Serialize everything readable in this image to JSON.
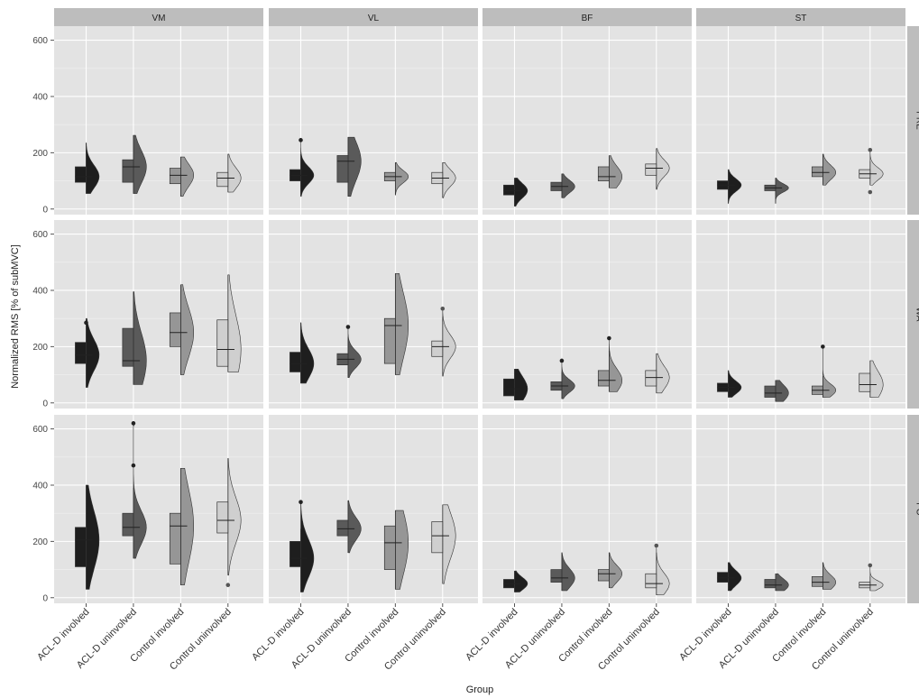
{
  "chart_data": {
    "type": "half-violin-box",
    "xlabel": "Group",
    "ylabel": "Normalized RMS [% of subMVC]",
    "ylim": [
      -20,
      650
    ],
    "yticks": [
      0,
      200,
      400,
      600
    ],
    "grid": true,
    "columns": [
      "VM",
      "VL",
      "BF",
      "ST"
    ],
    "rows": [
      "PRE",
      "WA",
      "PO"
    ],
    "categories": [
      "ACL-D involved",
      "ACL-D uninvolved",
      "Control involved",
      "Control uninvolved"
    ],
    "group_colors": [
      "#1e1e1e",
      "#5a5a5a",
      "#969696",
      "#cfcfcf"
    ],
    "panels": [
      {
        "row": "PRE",
        "col": "VM",
        "groups": [
          {
            "min": 55,
            "q1": 95,
            "median": 115,
            "q3": 150,
            "max": 235,
            "outliers": []
          },
          {
            "min": 55,
            "q1": 95,
            "median": 150,
            "q3": 175,
            "max": 262,
            "outliers": []
          },
          {
            "min": 45,
            "q1": 90,
            "median": 120,
            "q3": 145,
            "max": 185,
            "outliers": []
          },
          {
            "min": 60,
            "q1": 80,
            "median": 110,
            "q3": 130,
            "max": 195,
            "outliers": []
          }
        ]
      },
      {
        "row": "PRE",
        "col": "VL",
        "groups": [
          {
            "min": 45,
            "q1": 100,
            "median": 120,
            "q3": 140,
            "max": 195,
            "outliers": [
              245
            ]
          },
          {
            "min": 45,
            "q1": 95,
            "median": 170,
            "q3": 190,
            "max": 255,
            "outliers": []
          },
          {
            "min": 50,
            "q1": 100,
            "median": 115,
            "q3": 130,
            "max": 165,
            "outliers": []
          },
          {
            "min": 40,
            "q1": 90,
            "median": 110,
            "q3": 130,
            "max": 165,
            "outliers": []
          }
        ]
      },
      {
        "row": "PRE",
        "col": "BF",
        "groups": [
          {
            "min": 10,
            "q1": 50,
            "median": 65,
            "q3": 85,
            "max": 110,
            "outliers": []
          },
          {
            "min": 40,
            "q1": 65,
            "median": 80,
            "q3": 95,
            "max": 125,
            "outliers": []
          },
          {
            "min": 75,
            "q1": 100,
            "median": 115,
            "q3": 150,
            "max": 190,
            "outliers": []
          },
          {
            "min": 70,
            "q1": 120,
            "median": 145,
            "q3": 160,
            "max": 215,
            "outliers": []
          }
        ]
      },
      {
        "row": "PRE",
        "col": "ST",
        "groups": [
          {
            "min": 20,
            "q1": 70,
            "median": 85,
            "q3": 100,
            "max": 140,
            "outliers": []
          },
          {
            "min": 20,
            "q1": 65,
            "median": 75,
            "q3": 85,
            "max": 110,
            "outliers": []
          },
          {
            "min": 85,
            "q1": 115,
            "median": 130,
            "q3": 150,
            "max": 195,
            "outliers": []
          },
          {
            "min": 85,
            "q1": 110,
            "median": 125,
            "q3": 140,
            "max": 170,
            "outliers": [
              60,
              210
            ]
          }
        ]
      },
      {
        "row": "WA",
        "col": "VM",
        "groups": [
          {
            "min": 55,
            "q1": 140,
            "median": 170,
            "q3": 215,
            "max": 300,
            "outliers": [
              285
            ]
          },
          {
            "min": 65,
            "q1": 130,
            "median": 150,
            "q3": 265,
            "max": 395,
            "outliers": []
          },
          {
            "min": 100,
            "q1": 200,
            "median": 250,
            "q3": 320,
            "max": 420,
            "outliers": []
          },
          {
            "min": 110,
            "q1": 130,
            "median": 190,
            "q3": 295,
            "max": 455,
            "outliers": []
          }
        ]
      },
      {
        "row": "WA",
        "col": "VL",
        "groups": [
          {
            "min": 70,
            "q1": 110,
            "median": 140,
            "q3": 180,
            "max": 285,
            "outliers": []
          },
          {
            "min": 90,
            "q1": 135,
            "median": 155,
            "q3": 175,
            "max": 235,
            "outliers": [
              270
            ]
          },
          {
            "min": 100,
            "q1": 140,
            "median": 275,
            "q3": 300,
            "max": 460,
            "outliers": []
          },
          {
            "min": 95,
            "q1": 165,
            "median": 200,
            "q3": 220,
            "max": 305,
            "outliers": [
              335
            ]
          }
        ]
      },
      {
        "row": "WA",
        "col": "BF",
        "groups": [
          {
            "min": 10,
            "q1": 25,
            "median": 50,
            "q3": 85,
            "max": 120,
            "outliers": []
          },
          {
            "min": 15,
            "q1": 45,
            "median": 60,
            "q3": 75,
            "max": 110,
            "outliers": [
              150
            ]
          },
          {
            "min": 40,
            "q1": 60,
            "median": 80,
            "q3": 115,
            "max": 185,
            "outliers": [
              230
            ]
          },
          {
            "min": 35,
            "q1": 60,
            "median": 90,
            "q3": 115,
            "max": 175,
            "outliers": []
          }
        ]
      },
      {
        "row": "WA",
        "col": "ST",
        "groups": [
          {
            "min": 20,
            "q1": 40,
            "median": 55,
            "q3": 70,
            "max": 115,
            "outliers": []
          },
          {
            "min": 5,
            "q1": 20,
            "median": 35,
            "q3": 60,
            "max": 80,
            "outliers": []
          },
          {
            "min": 20,
            "q1": 30,
            "median": 45,
            "q3": 60,
            "max": 95,
            "outliers": [
              200
            ]
          },
          {
            "min": 20,
            "q1": 40,
            "median": 65,
            "q3": 105,
            "max": 150,
            "outliers": []
          }
        ]
      },
      {
        "row": "PO",
        "col": "VM",
        "groups": [
          {
            "min": 30,
            "q1": 110,
            "median": 205,
            "q3": 250,
            "max": 400,
            "outliers": []
          },
          {
            "min": 140,
            "q1": 220,
            "median": 250,
            "q3": 300,
            "max": 390,
            "outliers": [
              470,
              620
            ]
          },
          {
            "min": 45,
            "q1": 120,
            "median": 255,
            "q3": 300,
            "max": 460,
            "outliers": []
          },
          {
            "min": 80,
            "q1": 230,
            "median": 275,
            "q3": 340,
            "max": 495,
            "outliers": [
              45
            ]
          }
        ]
      },
      {
        "row": "PO",
        "col": "VL",
        "groups": [
          {
            "min": 20,
            "q1": 110,
            "median": 140,
            "q3": 200,
            "max": 245,
            "outliers": [
              340
            ]
          },
          {
            "min": 160,
            "q1": 220,
            "median": 245,
            "q3": 275,
            "max": 345,
            "outliers": []
          },
          {
            "min": 30,
            "q1": 100,
            "median": 195,
            "q3": 255,
            "max": 310,
            "outliers": []
          },
          {
            "min": 50,
            "q1": 160,
            "median": 220,
            "q3": 270,
            "max": 330,
            "outliers": []
          }
        ]
      },
      {
        "row": "PO",
        "col": "BF",
        "groups": [
          {
            "min": 20,
            "q1": 35,
            "median": 50,
            "q3": 65,
            "max": 95,
            "outliers": []
          },
          {
            "min": 25,
            "q1": 55,
            "median": 70,
            "q3": 100,
            "max": 160,
            "outliers": []
          },
          {
            "min": 35,
            "q1": 60,
            "median": 85,
            "q3": 100,
            "max": 160,
            "outliers": []
          },
          {
            "min": 10,
            "q1": 35,
            "median": 50,
            "q3": 85,
            "max": 160,
            "outliers": [
              185
            ]
          }
        ]
      },
      {
        "row": "PO",
        "col": "ST",
        "groups": [
          {
            "min": 25,
            "q1": 55,
            "median": 70,
            "q3": 90,
            "max": 125,
            "outliers": []
          },
          {
            "min": 25,
            "q1": 35,
            "median": 45,
            "q3": 65,
            "max": 85,
            "outliers": []
          },
          {
            "min": 30,
            "q1": 40,
            "median": 55,
            "q3": 75,
            "max": 125,
            "outliers": []
          },
          {
            "min": 25,
            "q1": 35,
            "median": 45,
            "q3": 55,
            "max": 75,
            "outliers": [
              115
            ]
          }
        ]
      }
    ]
  }
}
